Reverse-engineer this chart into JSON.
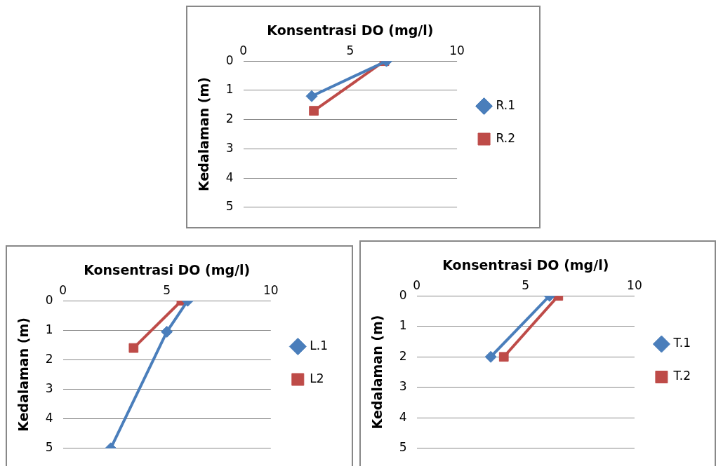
{
  "chart_data": [
    {
      "type": "line",
      "xlabel": "Konsentrasi DO (mg/l)",
      "ylabel": "Kedalaman (m)",
      "xlim": [
        0,
        10
      ],
      "xticks": [
        0,
        5,
        10
      ],
      "ylim": [
        5,
        0
      ],
      "yticks": [
        0,
        1,
        2,
        3,
        4,
        5
      ],
      "grid": "y",
      "legend": "right",
      "series": [
        {
          "name": "R.1",
          "color": "#4a7ebb",
          "marker": "diamond",
          "x": [
            6.7,
            3.2
          ],
          "values": [
            0,
            1.2
          ]
        },
        {
          "name": "R.2",
          "color": "#be4b48",
          "marker": "square",
          "x": [
            6.6,
            3.3
          ],
          "values": [
            0,
            1.7
          ]
        }
      ]
    },
    {
      "type": "line",
      "xlabel": "Konsentrasi DO (mg/l)",
      "ylabel": "Kedalaman (m)",
      "xlim": [
        0,
        10
      ],
      "xticks": [
        0,
        5,
        10
      ],
      "ylim": [
        5,
        0
      ],
      "yticks": [
        0,
        1,
        2,
        3,
        4,
        5
      ],
      "grid": "y",
      "legend": "right",
      "series": [
        {
          "name": "L.1",
          "color": "#4a7ebb",
          "marker": "diamond",
          "x": [
            6.0,
            5.0,
            2.3
          ],
          "values": [
            0,
            1.05,
            5
          ]
        },
        {
          "name": "L2",
          "color": "#be4b48",
          "marker": "square",
          "x": [
            5.7,
            3.4
          ],
          "values": [
            0,
            1.6
          ]
        }
      ]
    },
    {
      "type": "line",
      "xlabel": "Konsentrasi DO (mg/l)",
      "ylabel": "Kedalaman (m)",
      "xlim": [
        0,
        10
      ],
      "xticks": [
        0,
        5,
        10
      ],
      "ylim": [
        5,
        0
      ],
      "yticks": [
        0,
        1,
        2,
        3,
        4,
        5
      ],
      "grid": "y",
      "legend": "right",
      "series": [
        {
          "name": "T.1",
          "color": "#4a7ebb",
          "marker": "diamond",
          "x": [
            6.1,
            3.4
          ],
          "values": [
            0,
            2
          ]
        },
        {
          "name": "T.2",
          "color": "#be4b48",
          "marker": "square",
          "x": [
            6.5,
            4.0
          ],
          "values": [
            0,
            2
          ]
        }
      ]
    }
  ]
}
